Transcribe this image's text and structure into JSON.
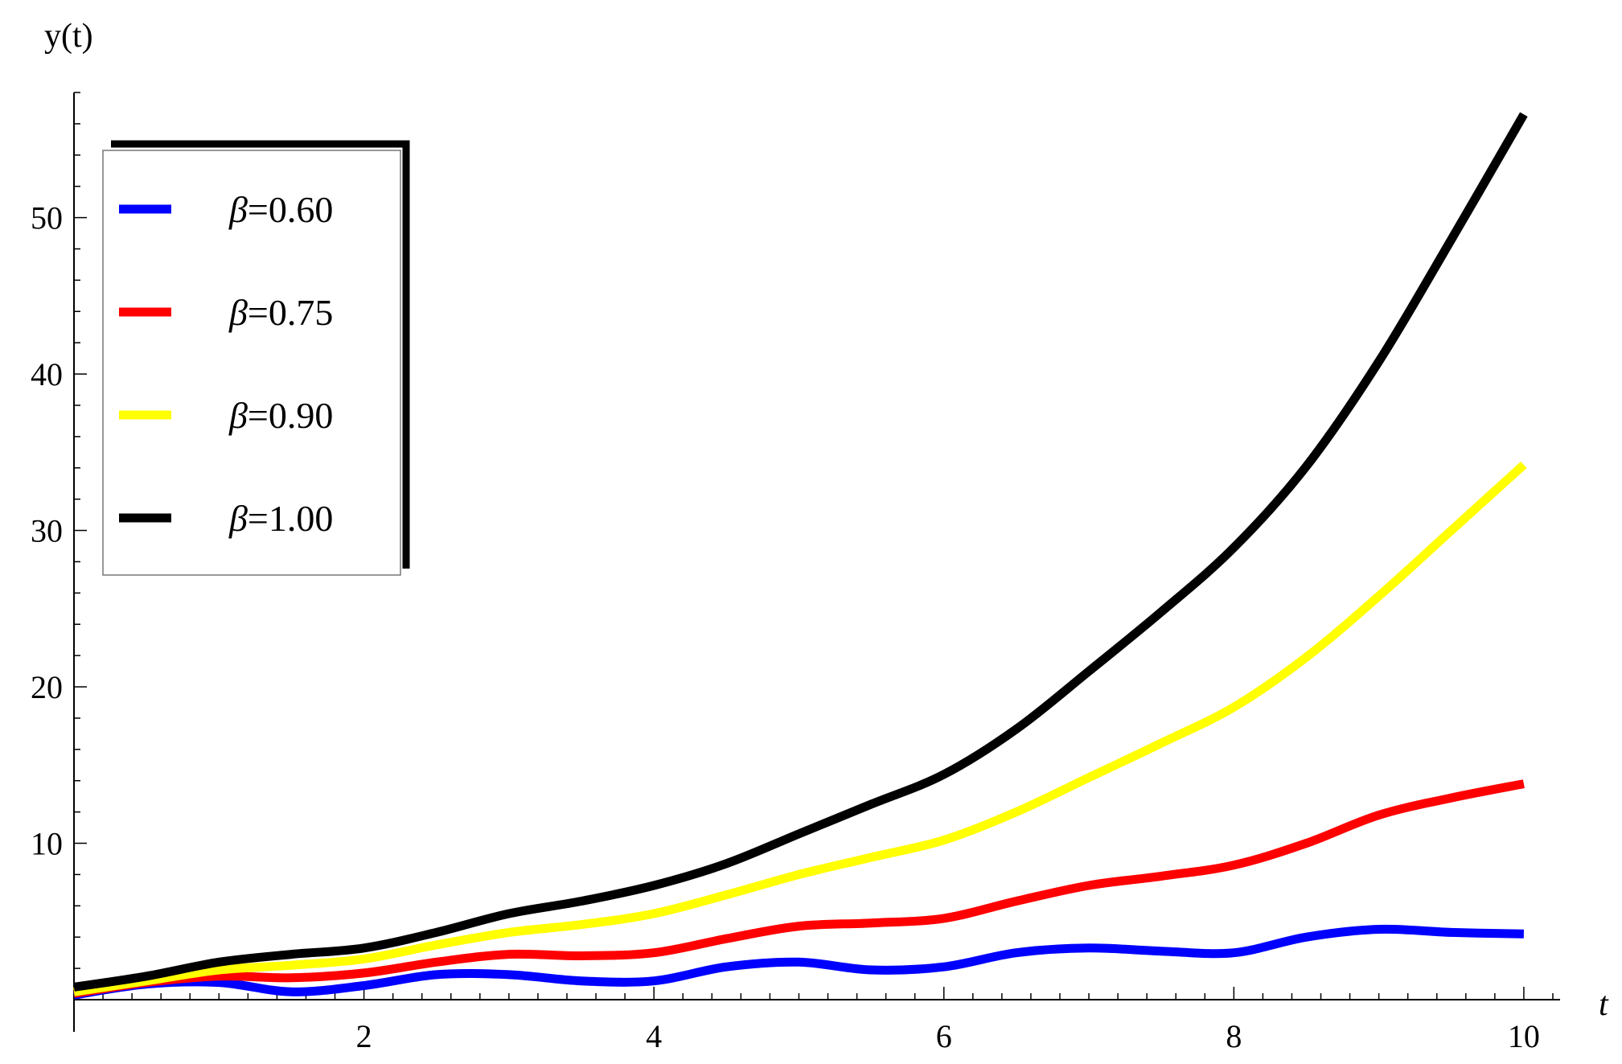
{
  "chart_data": {
    "type": "line",
    "xlabel": "t",
    "ylabel": "y(t)",
    "xlim": [
      0,
      10.25
    ],
    "ylim": [
      0,
      58
    ],
    "xticks": [
      2,
      4,
      6,
      8,
      10
    ],
    "yticks": [
      10,
      20,
      30,
      40,
      50
    ],
    "grid": false,
    "legend_position": "top-left",
    "series": [
      {
        "name": "β=0.60",
        "color": "#0000ff",
        "x": [
          0,
          0.5,
          1,
          1.5,
          2,
          2.5,
          3,
          3.5,
          4,
          4.5,
          5,
          5.5,
          6,
          6.5,
          7,
          7.5,
          8,
          8.5,
          9,
          9.5,
          10
        ],
        "y": [
          0.3,
          1.0,
          1.1,
          0.5,
          0.9,
          1.6,
          1.6,
          1.2,
          1.2,
          2.1,
          2.4,
          1.9,
          2.1,
          3.0,
          3.3,
          3.1,
          3.0,
          4.0,
          4.5,
          4.3,
          4.2
        ]
      },
      {
        "name": "β=0.75",
        "color": "#ff0000",
        "x": [
          0,
          0.5,
          1,
          1.5,
          2,
          2.5,
          3,
          3.5,
          4,
          4.5,
          5,
          5.5,
          6,
          6.5,
          7,
          7.5,
          8,
          8.5,
          9,
          9.5,
          10
        ],
        "y": [
          0.4,
          1.1,
          1.5,
          1.4,
          1.7,
          2.4,
          2.9,
          2.8,
          3.0,
          3.9,
          4.7,
          4.9,
          5.2,
          6.3,
          7.3,
          7.9,
          8.6,
          10.0,
          11.8,
          12.9,
          13.8
        ]
      },
      {
        "name": "β=0.90",
        "color": "#ffff00",
        "x": [
          0,
          0.5,
          1,
          1.5,
          2,
          2.5,
          3,
          3.5,
          4,
          4.5,
          5,
          5.5,
          6,
          6.5,
          7,
          7.5,
          8,
          8.5,
          9,
          9.5,
          10
        ],
        "y": [
          0.5,
          1.2,
          1.9,
          2.2,
          2.6,
          3.5,
          4.3,
          4.8,
          5.5,
          6.7,
          8.0,
          9.1,
          10.2,
          12.0,
          14.2,
          16.4,
          18.7,
          21.9,
          25.8,
          30.0,
          34.2
        ]
      },
      {
        "name": "β=1.00",
        "color": "#000000",
        "x": [
          0,
          0.5,
          1,
          1.5,
          2,
          2.5,
          3,
          3.5,
          4,
          4.5,
          5,
          5.5,
          6,
          6.5,
          7,
          7.5,
          8,
          8.5,
          9,
          9.5,
          10
        ],
        "y": [
          0.8,
          1.5,
          2.4,
          2.9,
          3.3,
          4.3,
          5.5,
          6.3,
          7.3,
          8.7,
          10.6,
          12.5,
          14.4,
          17.3,
          21.0,
          24.8,
          28.9,
          34.1,
          40.8,
          48.6,
          56.6
        ]
      }
    ]
  }
}
